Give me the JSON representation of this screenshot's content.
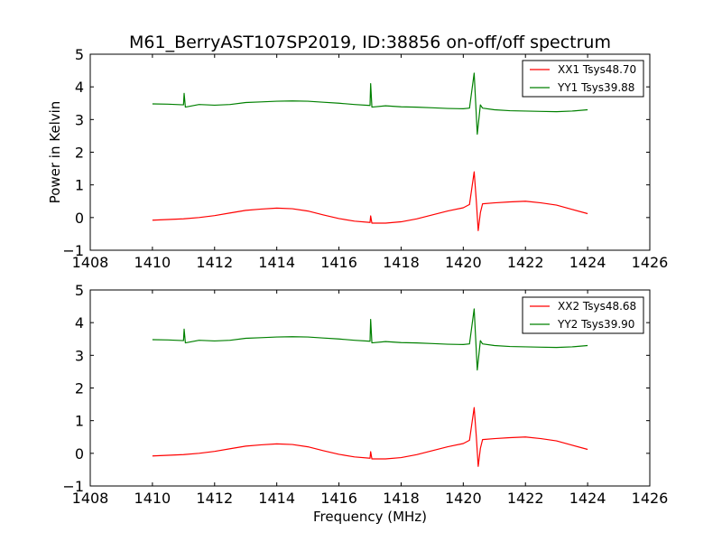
{
  "chart_data": {
    "type": "line",
    "title": "M61_BerryAST107SP2019, ID:38856 on-off/off spectrum",
    "xlabel": "Frequency (MHz)",
    "ylabel": "Power in Kelvin",
    "colors": {
      "xx": "#ff0000",
      "yy": "#008000"
    },
    "panels": [
      {
        "xlim": [
          1408,
          1426
        ],
        "ylim": [
          -1,
          5
        ],
        "xticks": [
          1408,
          1410,
          1412,
          1414,
          1416,
          1418,
          1420,
          1422,
          1424,
          1426
        ],
        "yticks": [
          -1,
          0,
          1,
          2,
          3,
          4,
          5
        ],
        "ylabel": "Power in Kelvin",
        "xlabel": "",
        "legend_position": "top-right",
        "series": [
          {
            "name": "XX1 Tsys48.70",
            "color": "#ff0000",
            "points": [
              [
                1410.0,
                -0.08
              ],
              [
                1410.5,
                -0.06
              ],
              [
                1411.0,
                -0.04
              ],
              [
                1411.5,
                0.0
              ],
              [
                1412.0,
                0.06
              ],
              [
                1412.5,
                0.14
              ],
              [
                1413.0,
                0.22
              ],
              [
                1413.5,
                0.26
              ],
              [
                1414.0,
                0.29
              ],
              [
                1414.5,
                0.27
              ],
              [
                1415.0,
                0.2
              ],
              [
                1415.5,
                0.08
              ],
              [
                1416.0,
                -0.03
              ],
              [
                1416.5,
                -0.11
              ],
              [
                1417.0,
                -0.15
              ],
              [
                1417.02,
                0.05
              ],
              [
                1417.06,
                -0.17
              ],
              [
                1417.5,
                -0.17
              ],
              [
                1418.0,
                -0.13
              ],
              [
                1418.5,
                -0.04
              ],
              [
                1419.0,
                0.08
              ],
              [
                1419.5,
                0.2
              ],
              [
                1420.0,
                0.3
              ],
              [
                1420.2,
                0.4
              ],
              [
                1420.35,
                1.4
              ],
              [
                1420.42,
                0.5
              ],
              [
                1420.48,
                -0.4
              ],
              [
                1420.55,
                0.15
              ],
              [
                1420.62,
                0.42
              ],
              [
                1421.0,
                0.45
              ],
              [
                1421.5,
                0.48
              ],
              [
                1422.0,
                0.5
              ],
              [
                1422.5,
                0.45
              ],
              [
                1423.0,
                0.38
              ],
              [
                1423.5,
                0.25
              ],
              [
                1424.0,
                0.12
              ]
            ]
          },
          {
            "name": "YY1 Tsys39.88",
            "color": "#008000",
            "points": [
              [
                1410.0,
                3.48
              ],
              [
                1410.5,
                3.47
              ],
              [
                1411.0,
                3.45
              ],
              [
                1411.02,
                3.8
              ],
              [
                1411.06,
                3.38
              ],
              [
                1411.5,
                3.46
              ],
              [
                1412.0,
                3.44
              ],
              [
                1412.5,
                3.46
              ],
              [
                1413.0,
                3.52
              ],
              [
                1413.5,
                3.54
              ],
              [
                1414.0,
                3.56
              ],
              [
                1414.5,
                3.57
              ],
              [
                1415.0,
                3.56
              ],
              [
                1415.5,
                3.53
              ],
              [
                1416.0,
                3.5
              ],
              [
                1416.5,
                3.46
              ],
              [
                1417.0,
                3.43
              ],
              [
                1417.02,
                4.1
              ],
              [
                1417.06,
                3.38
              ],
              [
                1417.5,
                3.42
              ],
              [
                1418.0,
                3.39
              ],
              [
                1418.5,
                3.38
              ],
              [
                1419.0,
                3.36
              ],
              [
                1419.5,
                3.34
              ],
              [
                1420.0,
                3.33
              ],
              [
                1420.2,
                3.35
              ],
              [
                1420.35,
                4.42
              ],
              [
                1420.45,
                2.55
              ],
              [
                1420.55,
                3.45
              ],
              [
                1420.62,
                3.35
              ],
              [
                1421.0,
                3.3
              ],
              [
                1421.5,
                3.27
              ],
              [
                1422.0,
                3.26
              ],
              [
                1422.5,
                3.25
              ],
              [
                1423.0,
                3.24
              ],
              [
                1423.5,
                3.26
              ],
              [
                1424.0,
                3.3
              ]
            ]
          }
        ]
      },
      {
        "xlim": [
          1408,
          1426
        ],
        "ylim": [
          -1,
          5
        ],
        "xticks": [
          1408,
          1410,
          1412,
          1414,
          1416,
          1418,
          1420,
          1422,
          1424,
          1426
        ],
        "yticks": [
          -1,
          0,
          1,
          2,
          3,
          4,
          5
        ],
        "ylabel": "",
        "xlabel": "Frequency (MHz)",
        "legend_position": "top-right",
        "series": [
          {
            "name": "XX2 Tsys48.68",
            "color": "#ff0000",
            "points": [
              [
                1410.0,
                -0.08
              ],
              [
                1410.5,
                -0.06
              ],
              [
                1411.0,
                -0.04
              ],
              [
                1411.5,
                0.0
              ],
              [
                1412.0,
                0.06
              ],
              [
                1412.5,
                0.14
              ],
              [
                1413.0,
                0.22
              ],
              [
                1413.5,
                0.26
              ],
              [
                1414.0,
                0.29
              ],
              [
                1414.5,
                0.27
              ],
              [
                1415.0,
                0.2
              ],
              [
                1415.5,
                0.08
              ],
              [
                1416.0,
                -0.03
              ],
              [
                1416.5,
                -0.11
              ],
              [
                1417.0,
                -0.15
              ],
              [
                1417.02,
                0.05
              ],
              [
                1417.06,
                -0.17
              ],
              [
                1417.5,
                -0.17
              ],
              [
                1418.0,
                -0.13
              ],
              [
                1418.5,
                -0.04
              ],
              [
                1419.0,
                0.08
              ],
              [
                1419.5,
                0.2
              ],
              [
                1420.0,
                0.3
              ],
              [
                1420.2,
                0.4
              ],
              [
                1420.35,
                1.4
              ],
              [
                1420.42,
                0.5
              ],
              [
                1420.48,
                -0.4
              ],
              [
                1420.55,
                0.15
              ],
              [
                1420.62,
                0.42
              ],
              [
                1421.0,
                0.45
              ],
              [
                1421.5,
                0.48
              ],
              [
                1422.0,
                0.5
              ],
              [
                1422.5,
                0.45
              ],
              [
                1423.0,
                0.38
              ],
              [
                1423.5,
                0.25
              ],
              [
                1424.0,
                0.12
              ]
            ]
          },
          {
            "name": "YY2 Tsys39.90",
            "color": "#008000",
            "points": [
              [
                1410.0,
                3.48
              ],
              [
                1410.5,
                3.47
              ],
              [
                1411.0,
                3.45
              ],
              [
                1411.02,
                3.8
              ],
              [
                1411.06,
                3.38
              ],
              [
                1411.5,
                3.46
              ],
              [
                1412.0,
                3.44
              ],
              [
                1412.5,
                3.46
              ],
              [
                1413.0,
                3.52
              ],
              [
                1413.5,
                3.54
              ],
              [
                1414.0,
                3.56
              ],
              [
                1414.5,
                3.57
              ],
              [
                1415.0,
                3.56
              ],
              [
                1415.5,
                3.53
              ],
              [
                1416.0,
                3.5
              ],
              [
                1416.5,
                3.46
              ],
              [
                1417.0,
                3.43
              ],
              [
                1417.02,
                4.1
              ],
              [
                1417.06,
                3.38
              ],
              [
                1417.5,
                3.42
              ],
              [
                1418.0,
                3.39
              ],
              [
                1418.5,
                3.38
              ],
              [
                1419.0,
                3.36
              ],
              [
                1419.5,
                3.34
              ],
              [
                1420.0,
                3.33
              ],
              [
                1420.2,
                3.35
              ],
              [
                1420.35,
                4.42
              ],
              [
                1420.45,
                2.55
              ],
              [
                1420.55,
                3.45
              ],
              [
                1420.62,
                3.35
              ],
              [
                1421.0,
                3.3
              ],
              [
                1421.5,
                3.27
              ],
              [
                1422.0,
                3.26
              ],
              [
                1422.5,
                3.25
              ],
              [
                1423.0,
                3.24
              ],
              [
                1423.5,
                3.26
              ],
              [
                1424.0,
                3.3
              ]
            ]
          }
        ]
      }
    ]
  }
}
